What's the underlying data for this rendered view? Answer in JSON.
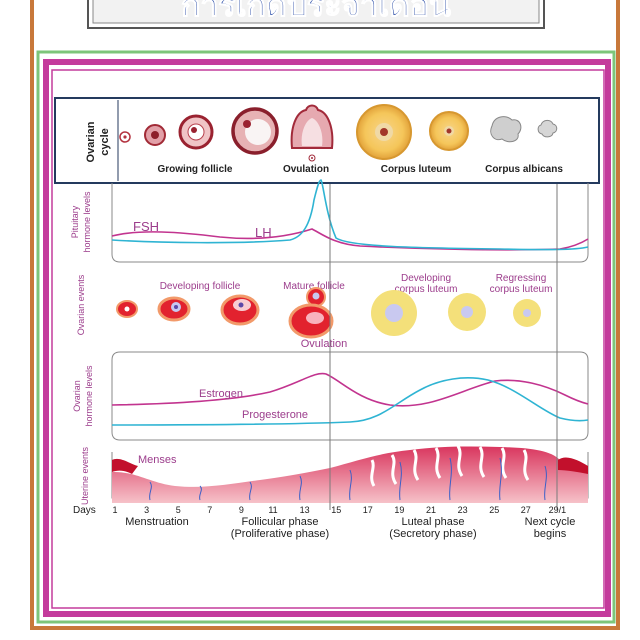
{
  "title": "การเกิดประจำเดือน",
  "ovarian_cycle": {
    "row_label_line1": "Ovarian",
    "row_label_line2": "cycle",
    "stage_labels": [
      "Growing follicle",
      "Ovulation",
      "Corpus luteum",
      "Corpus albicans"
    ]
  },
  "pituitary": {
    "axis_label_line1": "Pituitary",
    "axis_label_line2": "hormone levels",
    "series": [
      {
        "name": "FSH",
        "color": "#c2348f"
      },
      {
        "name": "LH",
        "color": "#2fb4d3"
      }
    ]
  },
  "ovarian_events": {
    "axis_label": "Ovarian events",
    "labels": {
      "developing_follicle": "Developing follicle",
      "mature_follicle": "Mature follicle",
      "developing_cl_line1": "Developing",
      "developing_cl_line2": "corpus luteum",
      "regressing_cl_line1": "Regressing",
      "regressing_cl_line2": "corpus luteum",
      "ovulation": "Ovulation"
    }
  },
  "ovarian_hormones": {
    "axis_label_line1": "Ovarian",
    "axis_label_line2": "hormone levels",
    "series": [
      {
        "name": "Estrogen",
        "color": "#c2348f"
      },
      {
        "name": "Progesterone",
        "color": "#2fb4d3"
      }
    ]
  },
  "uterine": {
    "axis_label": "Uterine events",
    "menses_label": "Menses"
  },
  "days": {
    "label": "Days",
    "ticks": [
      "1",
      "3",
      "5",
      "7",
      "9",
      "11",
      "13",
      "15",
      "17",
      "19",
      "21",
      "23",
      "25",
      "27",
      "29/1"
    ]
  },
  "phases": {
    "menstruation": "Menstruation",
    "follicular_line1": "Follicular phase",
    "follicular_line2": "(Proliferative phase)",
    "luteal_line1": "Luteal phase",
    "luteal_line2": "(Secretory phase)",
    "next_line1": "Next cycle",
    "next_line2": "begins"
  },
  "colors": {
    "title_text": "#1a3fa0",
    "title_outline": "#ffffff",
    "frame_outer": "#c8783a",
    "frame_green": "#7dc57a",
    "frame_magenta": "#c43b9c",
    "corpus_luteum": "#f4e07a",
    "follicle_red": "#e2222e",
    "endometrium": "#d5406a"
  }
}
